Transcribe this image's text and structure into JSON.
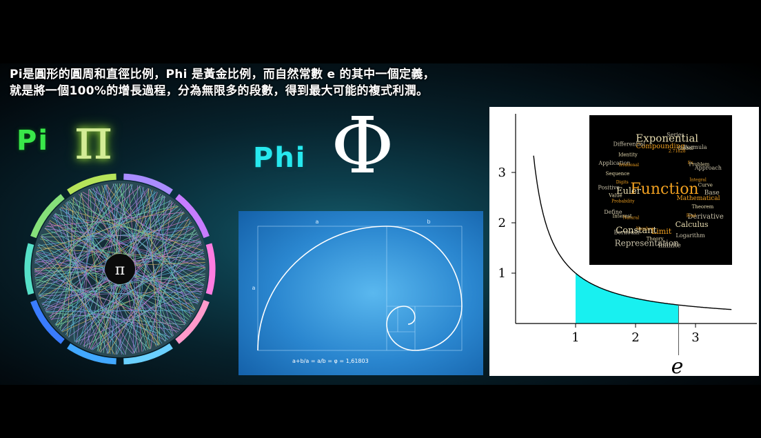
{
  "caption": {
    "line1": "Pi是圓形的圓周和直徑比例，Phi 是黃金比例，而自然常數 e 的其中一個定義，",
    "line2": "就是將一個100%的增長過程，分為無限多的段數，得到最大可能的複式利潤。"
  },
  "pi": {
    "label": "Pi",
    "symbol": "π",
    "center_symbol": "π"
  },
  "phi": {
    "label": "Phi",
    "symbol": "Φ"
  },
  "golden": {
    "label_a_top": "a",
    "label_b_top": "b",
    "label_a_side": "a",
    "formula": "a+b/a = a/b = φ = 1,61803"
  },
  "chart_data": {
    "type": "line",
    "function": "y = 1/x",
    "x_ticks": [
      "1",
      "2",
      "3"
    ],
    "y_ticks": [
      "1",
      "2",
      "3"
    ],
    "shaded_interval": [
      1,
      2.718
    ],
    "marker_label": "e",
    "xlim": [
      0,
      3.6
    ],
    "ylim": [
      0,
      3.6
    ]
  },
  "word_cloud": {
    "words": [
      "Compounding",
      "Exponential",
      "Series",
      "2.71828",
      "Global",
      "Formula",
      "Ex",
      "Problem",
      "Approach",
      "Integral",
      "Curve",
      "Base",
      "Mathematical",
      "Theorem",
      "Derivative",
      "Real",
      "Calculus",
      "Logarithm",
      "Function",
      "Euler",
      "Infinite",
      "Limit",
      "Theory",
      "Representation",
      "Number",
      "Constant",
      "Bernoulli",
      "Natural",
      "Interest",
      "Define",
      "Probability",
      "Value",
      "Positive",
      "Digits",
      "Sequence",
      "Application",
      "Irrational",
      "Identity",
      "Differential"
    ],
    "colors": {
      "orange": "#f0a020",
      "cream": "#e8dcb0",
      "gray": "#c8c0a8"
    }
  },
  "colors": {
    "pi_green": "#39e84a",
    "phi_cyan": "#27e8ee",
    "shade_cyan": "#18f0f0",
    "golden_blue": "#3aa0e0"
  }
}
